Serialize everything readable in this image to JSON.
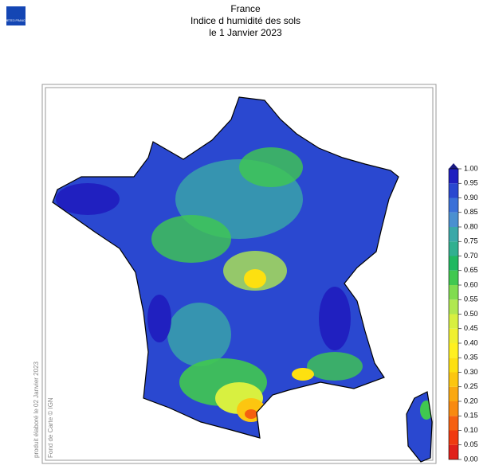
{
  "header": {
    "logo_text": "METEO FRANCE",
    "title": "France",
    "subtitle": "Indice d humidité des sols",
    "date": "le 1 Janvier 2023"
  },
  "credits": {
    "produced": "produit élaboré le 02 Janvier 2023",
    "basemap": "Fond de Carte © IGN"
  },
  "colorbar": {
    "ticks": [
      {
        "value": 0,
        "label": "0.00"
      },
      {
        "value": 0.05,
        "label": "0.05"
      },
      {
        "value": 0.1,
        "label": "0.10"
      },
      {
        "value": 0.15,
        "label": "0.15"
      },
      {
        "value": 0.2,
        "label": "0.20"
      },
      {
        "value": 0.25,
        "label": "0.25"
      },
      {
        "value": 0.3,
        "label": "0.30"
      },
      {
        "value": 0.35,
        "label": "0.35"
      },
      {
        "value": 0.4,
        "label": "0.40"
      },
      {
        "value": 0.45,
        "label": "0.45"
      },
      {
        "value": 0.5,
        "label": "0.50"
      },
      {
        "value": 0.55,
        "label": "0.55"
      },
      {
        "value": 0.6,
        "label": "0.60"
      },
      {
        "value": 0.65,
        "label": "0.65"
      },
      {
        "value": 0.7,
        "label": "0.70"
      },
      {
        "value": 0.75,
        "label": "0.75"
      },
      {
        "value": 0.8,
        "label": "0.80"
      },
      {
        "value": 0.85,
        "label": "0.85"
      },
      {
        "value": 0.9,
        "label": "0.90"
      },
      {
        "value": 0.95,
        "label": "0.95"
      },
      {
        "value": 1,
        "label": "1.00"
      }
    ],
    "range": [
      0,
      1
    ],
    "colors": [
      "#e0201a",
      "#f03a10",
      "#f56010",
      "#f88a10",
      "#faa810",
      "#fcc610",
      "#fde010",
      "#fff020",
      "#f0f030",
      "#d8f040",
      "#b0e850",
      "#80dc50",
      "#40c850",
      "#20b860",
      "#30b090",
      "#3aa8a8",
      "#4a90d0",
      "#3a70d8",
      "#2a48d0",
      "#2020c0"
    ],
    "over_color": "#1a1a80"
  }
}
